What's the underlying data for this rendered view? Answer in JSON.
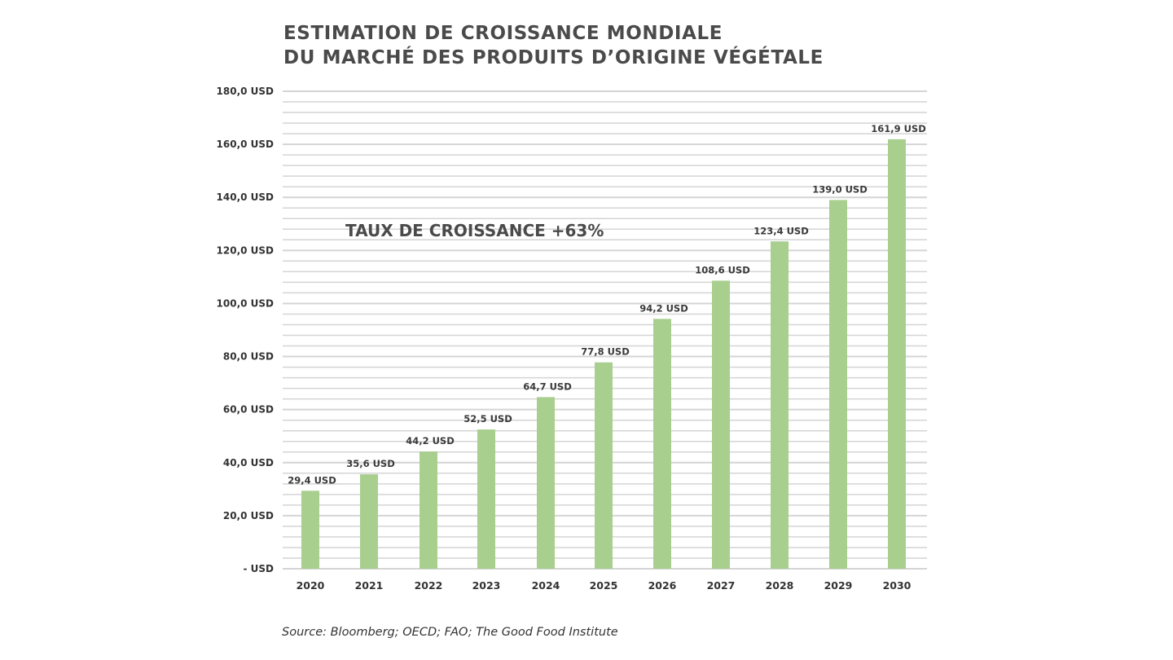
{
  "chart_data": {
    "type": "bar",
    "title_lines": [
      "ESTIMATION DE CROISSANCE MONDIALE",
      "DU MARCHÉ DES PRODUITS D’ORIGINE VÉGÉTALE"
    ],
    "categories": [
      "2020",
      "2021",
      "2022",
      "2023",
      "2024",
      "2025",
      "2026",
      "2027",
      "2028",
      "2029",
      "2030"
    ],
    "values": [
      29.4,
      35.6,
      44.2,
      52.5,
      64.7,
      77.8,
      94.2,
      108.6,
      123.4,
      139.0,
      161.9
    ],
    "data_labels": [
      "29,4 USD",
      "35,6 USD",
      "44,2 USD",
      "52,5 USD",
      "64,7 USD",
      "77,8 USD",
      "94,2 USD",
      "108,6 USD",
      "123,4 USD",
      "139,0 USD",
      "161,9 USD"
    ],
    "xlabel": "",
    "ylabel": "",
    "ylim": [
      0,
      180
    ],
    "y_ticks": [
      0,
      20,
      40,
      60,
      80,
      100,
      120,
      140,
      160,
      180
    ],
    "y_tick_labels": [
      "-   USD",
      "20,0 USD",
      "40,0 USD",
      "60,0 USD",
      "80,0 USD",
      "100,0 USD",
      "120,0 USD",
      "140,0 USD",
      "160,0 USD",
      "180,0 USD"
    ],
    "minor_grid_step": 4,
    "grid": true,
    "legend": "none",
    "annotation": "TAUX DE CROISSANCE +63%",
    "source": "Source: Bloomberg; OECD; FAO; The Good Food Institute",
    "colors": {
      "bar": "#a8cf8e",
      "grid": "#d4d4d4",
      "text": "#333333",
      "title": "#4a4a4a"
    }
  }
}
